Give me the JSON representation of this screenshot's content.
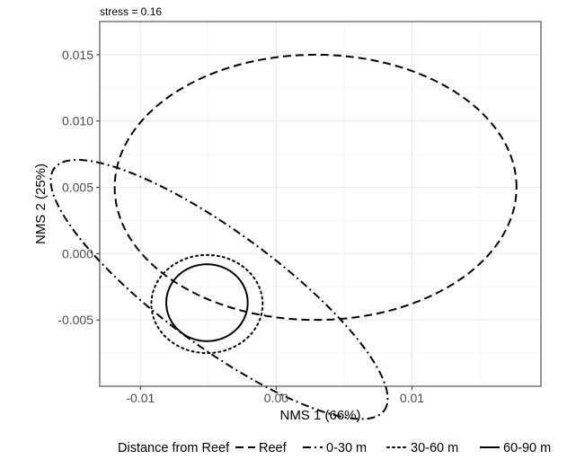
{
  "chart_data": {
    "type": "scatter",
    "subtitle": "stress = 0.16",
    "xlabel": "NMS 1 (66%)",
    "ylabel": "NMS 2 (25%)",
    "xlim": [
      -0.013,
      0.0195
    ],
    "ylim": [
      -0.01,
      0.0175
    ],
    "x_ticks": [
      {
        "value": -0.01,
        "label": "-0.01"
      },
      {
        "value": 0.0,
        "label": "0.00"
      },
      {
        "value": 0.01,
        "label": "0.01"
      }
    ],
    "y_ticks": [
      {
        "value": -0.005,
        "label": "-0.005"
      },
      {
        "value": 0.0,
        "label": "0.000"
      },
      {
        "value": 0.005,
        "label": "0.005"
      },
      {
        "value": 0.01,
        "label": "0.010"
      },
      {
        "value": 0.015,
        "label": "0.015"
      }
    ],
    "grid": true,
    "legend": {
      "position": "bottom",
      "title": "Distance from Reef",
      "entries": [
        "Reef",
        "0-30 m",
        "30-60 m",
        "60-90 m"
      ]
    },
    "series": [
      {
        "name": "Reef",
        "linestyle": "dashed",
        "ellipse": {
          "center": [
            0.0029,
            0.005
          ],
          "semi_axes": [
            0.0148,
            0.01
          ],
          "angle_deg": 0
        }
      },
      {
        "name": "0-30 m",
        "linestyle": "dotdash",
        "ellipse": {
          "center": [
            -0.0042,
            -0.0027
          ],
          "semi_axes": [
            0.0152,
            0.0043
          ],
          "angle_deg": -37
        }
      },
      {
        "name": "30-60 m",
        "linestyle": "dotted",
        "ellipse": {
          "center": [
            -0.0051,
            -0.0038
          ],
          "semi_axes": [
            0.0041,
            0.0037
          ],
          "angle_deg": 0
        }
      },
      {
        "name": "60-90 m",
        "linestyle": "solid",
        "ellipse": {
          "center": [
            -0.0051,
            -0.0037
          ],
          "semi_axes": [
            0.003,
            0.0029
          ],
          "angle_deg": 0
        }
      }
    ],
    "colors": {
      "lines": "#000000",
      "grid": "#ebebeb",
      "panel_border": "#333333"
    }
  }
}
